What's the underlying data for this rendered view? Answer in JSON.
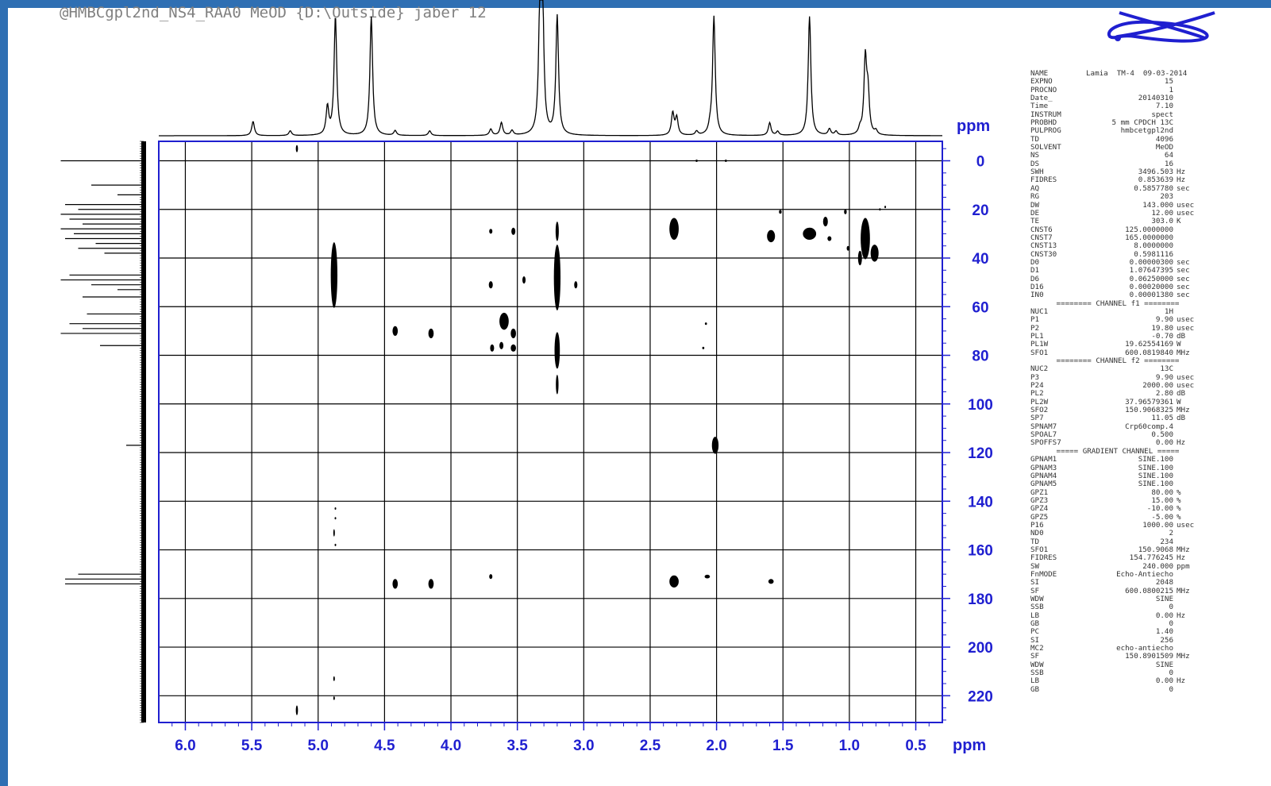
{
  "title_text": "@HMBCgpl2nd_NS4_RAA0 MeOD {D:\\Outside} jaber 12",
  "colors": {
    "frame": "#2f6fb3",
    "axis": "#1f1fd0",
    "grid": "#000000",
    "peak": "#000000"
  },
  "icons": {
    "logo": "bruker-orbit-logo-icon"
  },
  "chart_data": {
    "type": "scatter",
    "subtype": "2D HMBC NMR contour plot",
    "x_axis": {
      "label": "ppm",
      "lim": [
        6.2,
        0.3
      ],
      "reversed": true,
      "ticks": [
        "6.0",
        "5.5",
        "5.0",
        "4.5",
        "4.0",
        "3.5",
        "3.0",
        "2.5",
        "2.0",
        "1.5",
        "1.0",
        "0.5"
      ]
    },
    "y_axis": {
      "label": "ppm",
      "lim": [
        -8,
        231
      ],
      "reversed": true,
      "position": "right",
      "ticks": [
        "0",
        "20",
        "40",
        "60",
        "80",
        "100",
        "120",
        "140",
        "160",
        "180",
        "200",
        "220"
      ]
    },
    "grid": true,
    "projection_f2_peaks": [
      {
        "x": 5.49,
        "h": 0.18
      },
      {
        "x": 5.21,
        "h": 0.06
      },
      {
        "x": 4.93,
        "h": 0.35
      },
      {
        "x": 4.87,
        "h": 1.5
      },
      {
        "x": 4.6,
        "h": 1.5
      },
      {
        "x": 4.42,
        "h": 0.06
      },
      {
        "x": 4.16,
        "h": 0.06
      },
      {
        "x": 3.7,
        "h": 0.08
      },
      {
        "x": 3.62,
        "h": 0.16
      },
      {
        "x": 3.54,
        "h": 0.06
      },
      {
        "x": 3.33,
        "h": 1.5
      },
      {
        "x": 3.31,
        "h": 1.5
      },
      {
        "x": 3.2,
        "h": 1.5
      },
      {
        "x": 2.33,
        "h": 0.28
      },
      {
        "x": 2.3,
        "h": 0.22
      },
      {
        "x": 2.15,
        "h": 0.05
      },
      {
        "x": 2.05,
        "h": 0.07
      },
      {
        "x": 2.02,
        "h": 1.5
      },
      {
        "x": 1.6,
        "h": 0.16
      },
      {
        "x": 1.54,
        "h": 0.05
      },
      {
        "x": 1.3,
        "h": 1.5
      },
      {
        "x": 1.15,
        "h": 0.08
      },
      {
        "x": 1.1,
        "h": 0.05
      },
      {
        "x": 0.92,
        "h": 0.07
      },
      {
        "x": 0.88,
        "h": 0.95
      },
      {
        "x": 0.86,
        "h": 0.5
      },
      {
        "x": 0.8,
        "h": 0.05
      }
    ],
    "projection_f1_peaks": [
      {
        "y": 0,
        "w": 0.95
      },
      {
        "y": 10,
        "w": 0.6
      },
      {
        "y": 14,
        "w": 0.3
      },
      {
        "y": 18,
        "w": 0.9
      },
      {
        "y": 20,
        "w": 0.75
      },
      {
        "y": 22,
        "w": 0.95
      },
      {
        "y": 24,
        "w": 0.85
      },
      {
        "y": 26,
        "w": 0.7
      },
      {
        "y": 28,
        "w": 0.95
      },
      {
        "y": 30,
        "w": 0.8
      },
      {
        "y": 32,
        "w": 0.9
      },
      {
        "y": 34,
        "w": 0.55
      },
      {
        "y": 36,
        "w": 0.75
      },
      {
        "y": 38,
        "w": 0.45
      },
      {
        "y": 47,
        "w": 0.85
      },
      {
        "y": 49,
        "w": 0.95
      },
      {
        "y": 51,
        "w": 0.6
      },
      {
        "y": 53,
        "w": 0.3
      },
      {
        "y": 56,
        "w": 0.7
      },
      {
        "y": 63,
        "w": 0.65
      },
      {
        "y": 67,
        "w": 0.85
      },
      {
        "y": 69,
        "w": 0.7
      },
      {
        "y": 71,
        "w": 0.95
      },
      {
        "y": 76,
        "w": 0.5
      },
      {
        "y": 117,
        "w": 0.2
      },
      {
        "y": 170,
        "w": 0.75
      },
      {
        "y": 172,
        "w": 0.9
      },
      {
        "y": 174,
        "w": 0.9
      }
    ],
    "cross_peaks": [
      {
        "x": 4.88,
        "y": 47,
        "w": 0.025,
        "h": 27
      },
      {
        "x": 3.2,
        "y": 48,
        "w": 0.025,
        "h": 27
      },
      {
        "x": 3.2,
        "y": 78,
        "w": 0.02,
        "h": 15
      },
      {
        "x": 3.2,
        "y": 29,
        "w": 0.012,
        "h": 8
      },
      {
        "x": 3.2,
        "y": 92,
        "w": 0.01,
        "h": 8
      },
      {
        "x": 2.32,
        "y": 28,
        "w": 0.035,
        "h": 9
      },
      {
        "x": 1.59,
        "y": 31,
        "w": 0.03,
        "h": 5
      },
      {
        "x": 1.3,
        "y": 30,
        "w": 0.05,
        "h": 5
      },
      {
        "x": 1.18,
        "y": 25,
        "w": 0.018,
        "h": 4
      },
      {
        "x": 1.15,
        "y": 32,
        "w": 0.015,
        "h": 2
      },
      {
        "x": 0.88,
        "y": 32,
        "w": 0.035,
        "h": 17
      },
      {
        "x": 0.81,
        "y": 38,
        "w": 0.03,
        "h": 7
      },
      {
        "x": 0.92,
        "y": 40,
        "w": 0.015,
        "h": 6
      },
      {
        "x": 2.01,
        "y": 117,
        "w": 0.025,
        "h": 7
      },
      {
        "x": 4.42,
        "y": 174,
        "w": 0.02,
        "h": 4
      },
      {
        "x": 4.15,
        "y": 174,
        "w": 0.02,
        "h": 4
      },
      {
        "x": 2.32,
        "y": 173,
        "w": 0.035,
        "h": 5
      },
      {
        "x": 2.07,
        "y": 171,
        "w": 0.02,
        "h": 1.5
      },
      {
        "x": 1.59,
        "y": 173,
        "w": 0.02,
        "h": 2
      },
      {
        "x": 3.7,
        "y": 171,
        "w": 0.012,
        "h": 2
      },
      {
        "x": 3.6,
        "y": 66,
        "w": 0.035,
        "h": 7
      },
      {
        "x": 3.53,
        "y": 71,
        "w": 0.02,
        "h": 4
      },
      {
        "x": 3.53,
        "y": 77,
        "w": 0.02,
        "h": 3
      },
      {
        "x": 3.69,
        "y": 77,
        "w": 0.015,
        "h": 3
      },
      {
        "x": 3.62,
        "y": 76,
        "w": 0.015,
        "h": 3
      },
      {
        "x": 4.42,
        "y": 70,
        "w": 0.02,
        "h": 4
      },
      {
        "x": 4.15,
        "y": 71,
        "w": 0.02,
        "h": 4
      },
      {
        "x": 3.7,
        "y": 29,
        "w": 0.012,
        "h": 2
      },
      {
        "x": 3.53,
        "y": 29,
        "w": 0.015,
        "h": 3
      },
      {
        "x": 3.7,
        "y": 51,
        "w": 0.015,
        "h": 3
      },
      {
        "x": 3.45,
        "y": 49,
        "w": 0.012,
        "h": 3
      },
      {
        "x": 3.06,
        "y": 51,
        "w": 0.012,
        "h": 3
      },
      {
        "x": 2.08,
        "y": 67,
        "w": 0.008,
        "h": 1
      },
      {
        "x": 2.1,
        "y": 77,
        "w": 0.008,
        "h": 1
      },
      {
        "x": 2.15,
        "y": 0,
        "w": 0.008,
        "h": 1
      },
      {
        "x": 1.93,
        "y": 0,
        "w": 0.008,
        "h": 1
      },
      {
        "x": 5.16,
        "y": -5,
        "w": 0.008,
        "h": 3
      },
      {
        "x": 5.16,
        "y": 226,
        "w": 0.008,
        "h": 4
      },
      {
        "x": 4.88,
        "y": 153,
        "w": 0.005,
        "h": 3
      },
      {
        "x": 4.88,
        "y": 213,
        "w": 0.005,
        "h": 2
      },
      {
        "x": 4.88,
        "y": 221,
        "w": 0.005,
        "h": 1.5
      },
      {
        "x": 4.87,
        "y": 143,
        "w": 0.004,
        "h": 1
      },
      {
        "x": 4.87,
        "y": 147,
        "w": 0.004,
        "h": 1
      },
      {
        "x": 4.87,
        "y": 158,
        "w": 0.004,
        "h": 1
      },
      {
        "x": 1.52,
        "y": 21,
        "w": 0.01,
        "h": 1.5
      },
      {
        "x": 1.03,
        "y": 21,
        "w": 0.01,
        "h": 2
      },
      {
        "x": 1.01,
        "y": 36,
        "w": 0.01,
        "h": 2
      },
      {
        "x": 0.77,
        "y": 20,
        "w": 0.006,
        "h": 1
      },
      {
        "x": 0.73,
        "y": 19,
        "w": 0.006,
        "h": 1
      }
    ]
  },
  "params": [
    {
      "k": "NAME",
      "v": "Lamia  TM-4  09-03-2014",
      "u": ""
    },
    {
      "k": "EXPNO",
      "v": "15",
      "u": ""
    },
    {
      "k": "PROCNO",
      "v": "1",
      "u": ""
    },
    {
      "k": "Date_",
      "v": "20140310",
      "u": ""
    },
    {
      "k": "Time",
      "v": "7.10",
      "u": ""
    },
    {
      "k": "INSTRUM",
      "v": "spect",
      "u": ""
    },
    {
      "k": "PROBHD",
      "v": "5 mm CPDCH 13C",
      "u": ""
    },
    {
      "k": "PULPROG",
      "v": "hmbcetgpl2nd",
      "u": ""
    },
    {
      "k": "TD",
      "v": "4096",
      "u": ""
    },
    {
      "k": "SOLVENT",
      "v": "MeOD",
      "u": ""
    },
    {
      "k": "NS",
      "v": "64",
      "u": ""
    },
    {
      "k": "DS",
      "v": "16",
      "u": ""
    },
    {
      "k": "SWH",
      "v": "3496.503",
      "u": "Hz"
    },
    {
      "k": "FIDRES",
      "v": "0.853639",
      "u": "Hz"
    },
    {
      "k": "AQ",
      "v": "0.5857780",
      "u": "sec"
    },
    {
      "k": "RG",
      "v": "203",
      "u": ""
    },
    {
      "k": "DW",
      "v": "143.000",
      "u": "usec"
    },
    {
      "k": "DE",
      "v": "12.00",
      "u": "usec"
    },
    {
      "k": "TE",
      "v": "303.0",
      "u": "K"
    },
    {
      "k": "CNST6",
      "v": "125.0000000",
      "u": ""
    },
    {
      "k": "CNST7",
      "v": "165.0000000",
      "u": ""
    },
    {
      "k": "CNST13",
      "v": "8.0000000",
      "u": ""
    },
    {
      "k": "CNST30",
      "v": "0.5981116",
      "u": ""
    },
    {
      "k": "D0",
      "v": "0.00000300",
      "u": "sec"
    },
    {
      "k": "D1",
      "v": "1.07647395",
      "u": "sec"
    },
    {
      "k": "D6",
      "v": "0.06250000",
      "u": "sec"
    },
    {
      "k": "D16",
      "v": "0.00020000",
      "u": "sec"
    },
    {
      "k": "IN0",
      "v": "0.00001380",
      "u": "sec"
    },
    {
      "sep": "======== CHANNEL f1 ========"
    },
    {
      "k": "NUC1",
      "v": "1H",
      "u": ""
    },
    {
      "k": "P1",
      "v": "9.90",
      "u": "usec"
    },
    {
      "k": "P2",
      "v": "19.80",
      "u": "usec"
    },
    {
      "k": "PL1",
      "v": "-0.70",
      "u": "dB"
    },
    {
      "k": "PL1W",
      "v": "19.62554169",
      "u": "W"
    },
    {
      "k": "SFO1",
      "v": "600.0819840",
      "u": "MHz"
    },
    {
      "sep": "======== CHANNEL f2 ========"
    },
    {
      "k": "NUC2",
      "v": "13C",
      "u": ""
    },
    {
      "k": "P3",
      "v": "9.90",
      "u": "usec"
    },
    {
      "k": "P24",
      "v": "2000.00",
      "u": "usec"
    },
    {
      "k": "PL2",
      "v": "2.80",
      "u": "dB"
    },
    {
      "k": "PL2W",
      "v": "37.96579361",
      "u": "W"
    },
    {
      "k": "SFO2",
      "v": "150.9068325",
      "u": "MHz"
    },
    {
      "k": "SP7",
      "v": "11.05",
      "u": "dB"
    },
    {
      "k": "SPNAM7",
      "v": "Crp60comp.4",
      "u": ""
    },
    {
      "k": "SPOAL7",
      "v": "0.500",
      "u": ""
    },
    {
      "k": "SPOFFS7",
      "v": "0.00",
      "u": "Hz"
    },
    {
      "sep": "===== GRADIENT CHANNEL ====="
    },
    {
      "k": "GPNAM1",
      "v": "SINE.100",
      "u": ""
    },
    {
      "k": "GPNAM3",
      "v": "SINE.100",
      "u": ""
    },
    {
      "k": "GPNAM4",
      "v": "SINE.100",
      "u": ""
    },
    {
      "k": "GPNAM5",
      "v": "SINE.100",
      "u": ""
    },
    {
      "k": "GPZ1",
      "v": "80.00",
      "u": "%"
    },
    {
      "k": "GPZ3",
      "v": "15.00",
      "u": "%"
    },
    {
      "k": "GPZ4",
      "v": "-10.00",
      "u": "%"
    },
    {
      "k": "GPZ5",
      "v": "-5.00",
      "u": "%"
    },
    {
      "k": "P16",
      "v": "1000.00",
      "u": "usec"
    },
    {
      "k": "ND0",
      "v": "2",
      "u": ""
    },
    {
      "k": "TD",
      "v": "234",
      "u": ""
    },
    {
      "k": "SFO1",
      "v": "150.9068",
      "u": "MHz"
    },
    {
      "k": "FIDRES",
      "v": "154.776245",
      "u": "Hz"
    },
    {
      "k": "SW",
      "v": "240.000",
      "u": "ppm"
    },
    {
      "k": "FnMODE",
      "v": "Echo-Antiecho",
      "u": ""
    },
    {
      "k": "SI",
      "v": "2048",
      "u": ""
    },
    {
      "k": "SF",
      "v": "600.0800215",
      "u": "MHz"
    },
    {
      "k": "WDW",
      "v": "SINE",
      "u": ""
    },
    {
      "k": "SSB",
      "v": "0",
      "u": ""
    },
    {
      "k": "LB",
      "v": "0.00",
      "u": "Hz"
    },
    {
      "k": "GB",
      "v": "0",
      "u": ""
    },
    {
      "k": "PC",
      "v": "1.40",
      "u": ""
    },
    {
      "k": "SI",
      "v": "256",
      "u": ""
    },
    {
      "k": "MC2",
      "v": "echo-antiecho",
      "u": ""
    },
    {
      "k": "SF",
      "v": "150.8901509",
      "u": "MHz"
    },
    {
      "k": "WDW",
      "v": "SINE",
      "u": ""
    },
    {
      "k": "SSB",
      "v": "0",
      "u": ""
    },
    {
      "k": "LB",
      "v": "0.00",
      "u": "Hz"
    },
    {
      "k": "GB",
      "v": "0",
      "u": ""
    }
  ]
}
